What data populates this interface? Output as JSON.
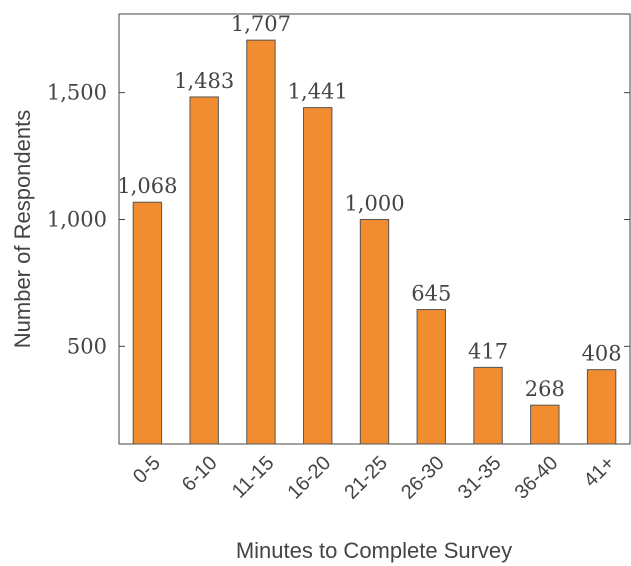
{
  "chart_data": {
    "type": "bar",
    "title": "",
    "xlabel": "Minutes to Complete Survey",
    "ylabel": "Number of Respondents",
    "categories": [
      "0-5",
      "6-10",
      "11-15",
      "16-20",
      "21-25",
      "26-30",
      "31-35",
      "36-40",
      "41+"
    ],
    "values": [
      1068,
      1483,
      1707,
      1441,
      1000,
      645,
      417,
      268,
      408
    ],
    "value_labels": [
      "1,068",
      "1,483",
      "1,707",
      "1,441",
      "1,000",
      "645",
      "417",
      "268",
      "408"
    ],
    "yticks": [
      500,
      1000,
      1500
    ],
    "ytick_labels": [
      "500",
      "1,000",
      "1,500"
    ],
    "ylim": [
      115,
      1810
    ],
    "grid": false,
    "legend": "none",
    "colors": {
      "bar_fill": "#f28c30",
      "bar_stroke": "#555555",
      "axis": "#444444",
      "text": "#444444"
    }
  }
}
